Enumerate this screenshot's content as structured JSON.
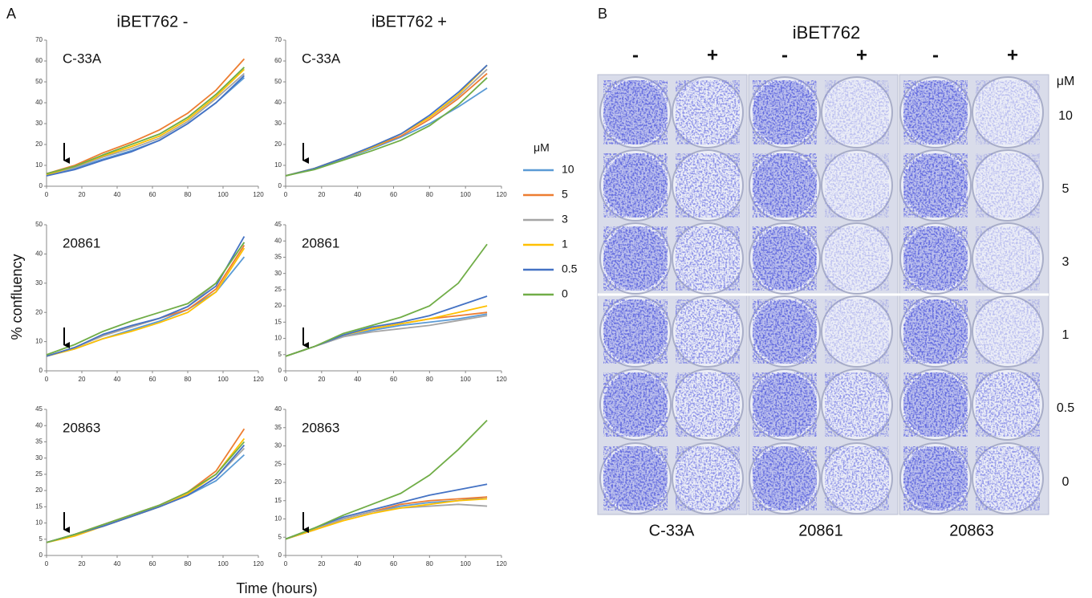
{
  "figure": {
    "panel_a": "A",
    "col_titles": [
      "iBET762 -",
      "iBET762 +"
    ],
    "ylabel": "% confluency",
    "xlabel": "Time (hours)",
    "legend_title": "μM"
  },
  "panel_b": {
    "label": "B",
    "title": "iBET762",
    "signs": [
      "-",
      "+",
      "-",
      "+",
      "-",
      "+"
    ],
    "unit": "μM",
    "rows": [
      "10",
      "5",
      "3",
      "1",
      "0.5",
      "0"
    ],
    "cells": [
      "C-33A",
      "20861",
      "20863"
    ]
  },
  "chart_data": [
    {
      "type": "line",
      "title": "C-33A",
      "x": [
        0,
        16,
        32,
        48,
        64,
        80,
        96,
        112
      ],
      "xlim": [
        0,
        120
      ],
      "xticks": [
        0,
        20,
        40,
        60,
        80,
        100,
        120
      ],
      "ylim": [
        0,
        70
      ],
      "yticks": [
        0,
        10,
        20,
        30,
        40,
        50,
        60,
        70
      ],
      "series": [
        {
          "name": "10",
          "color": "#5b9bd5",
          "values": [
            5,
            8.5,
            13,
            17,
            22,
            30,
            40,
            52
          ]
        },
        {
          "name": "5",
          "color": "#ed7d31",
          "values": [
            6,
            10,
            16,
            21,
            27,
            35,
            46,
            61
          ]
        },
        {
          "name": "3",
          "color": "#a5a5a5",
          "values": [
            5.5,
            9,
            14,
            18,
            23,
            31,
            42,
            54
          ]
        },
        {
          "name": "1",
          "color": "#ffc000",
          "values": [
            5.5,
            9.5,
            14.5,
            19,
            24,
            32,
            43,
            56
          ]
        },
        {
          "name": "0.5",
          "color": "#4472c4",
          "values": [
            5,
            8,
            12.5,
            16.5,
            22,
            30,
            40,
            53
          ]
        },
        {
          "name": "0",
          "color": "#70ad47",
          "values": [
            6,
            9.5,
            15,
            20,
            25,
            33,
            44,
            57
          ]
        }
      ]
    },
    {
      "type": "line",
      "title": "C-33A",
      "x": [
        0,
        16,
        32,
        48,
        64,
        80,
        96,
        112
      ],
      "xlim": [
        0,
        120
      ],
      "xticks": [
        0,
        20,
        40,
        60,
        80,
        100,
        120
      ],
      "ylim": [
        0,
        70
      ],
      "yticks": [
        0,
        10,
        20,
        30,
        40,
        50,
        60,
        70
      ],
      "series": [
        {
          "color": "#5b9bd5",
          "values": [
            5,
            8.5,
            13,
            18,
            23.5,
            30,
            38,
            47
          ]
        },
        {
          "color": "#ed7d31",
          "values": [
            5,
            8.5,
            13.5,
            18.5,
            24,
            32,
            42,
            54
          ]
        },
        {
          "color": "#a5a5a5",
          "values": [
            5,
            8.5,
            13.5,
            19,
            25,
            33,
            43,
            56
          ]
        },
        {
          "color": "#ffc000",
          "values": [
            5,
            8.5,
            13.5,
            18.5,
            25,
            33,
            44,
            58
          ]
        },
        {
          "color": "#4472c4",
          "values": [
            5,
            8.5,
            13.5,
            19,
            25,
            34,
            45,
            58
          ]
        },
        {
          "color": "#70ad47",
          "values": [
            5,
            8,
            12.5,
            17,
            22,
            29,
            39,
            52
          ]
        }
      ]
    },
    {
      "type": "line",
      "title": "20861",
      "x": [
        0,
        16,
        32,
        48,
        64,
        80,
        96,
        112
      ],
      "xlim": [
        0,
        120
      ],
      "xticks": [
        0,
        20,
        40,
        60,
        80,
        100,
        120
      ],
      "ylim": [
        0,
        50
      ],
      "yticks": [
        0,
        10,
        20,
        30,
        40,
        50
      ],
      "series": [
        {
          "color": "#5b9bd5",
          "values": [
            5,
            7.5,
            11,
            14,
            17,
            21,
            27,
            39
          ]
        },
        {
          "color": "#ed7d31",
          "values": [
            5,
            8,
            12,
            15,
            18,
            21,
            28,
            43
          ]
        },
        {
          "color": "#a5a5a5",
          "values": [
            5,
            8,
            12,
            15,
            18,
            22,
            30,
            44
          ]
        },
        {
          "color": "#ffc000",
          "values": [
            5,
            7.5,
            11,
            13.5,
            16.5,
            20,
            27,
            42
          ]
        },
        {
          "color": "#4472c4",
          "values": [
            5,
            8,
            12.5,
            15.5,
            18,
            22,
            29,
            46
          ]
        },
        {
          "color": "#70ad47",
          "values": [
            5.5,
            9,
            13.5,
            17,
            20,
            23,
            30,
            44
          ]
        }
      ]
    },
    {
      "type": "line",
      "title": "20861",
      "x": [
        0,
        16,
        32,
        48,
        64,
        80,
        96,
        112
      ],
      "xlim": [
        0,
        120
      ],
      "xticks": [
        0,
        20,
        40,
        60,
        80,
        100,
        120
      ],
      "ylim": [
        0,
        45
      ],
      "yticks": [
        0,
        5,
        10,
        15,
        20,
        25,
        30,
        35,
        40,
        45
      ],
      "series": [
        {
          "color": "#5b9bd5",
          "values": [
            4.5,
            7.5,
            10.5,
            12.5,
            14,
            15,
            16,
            17.5
          ]
        },
        {
          "color": "#ed7d31",
          "values": [
            4.5,
            7.5,
            11,
            13,
            14.5,
            16,
            17,
            18
          ]
        },
        {
          "color": "#a5a5a5",
          "values": [
            4.5,
            7.5,
            10.5,
            12,
            13,
            14,
            15.5,
            17
          ]
        },
        {
          "color": "#ffc000",
          "values": [
            4.5,
            7.5,
            11,
            13,
            14.5,
            16,
            18,
            20
          ]
        },
        {
          "color": "#4472c4",
          "values": [
            4.5,
            7.5,
            11,
            13.5,
            15,
            17,
            20,
            23
          ]
        },
        {
          "color": "#70ad47",
          "values": [
            4.5,
            7.5,
            11.5,
            14,
            16.5,
            20,
            27,
            39
          ]
        }
      ]
    },
    {
      "type": "line",
      "title": "20863",
      "x": [
        0,
        16,
        32,
        48,
        64,
        80,
        96,
        112
      ],
      "xlim": [
        0,
        120
      ],
      "xticks": [
        0,
        20,
        40,
        60,
        80,
        100,
        120
      ],
      "ylim": [
        0,
        45
      ],
      "yticks": [
        0,
        5,
        10,
        15,
        20,
        25,
        30,
        35,
        40,
        45
      ],
      "series": [
        {
          "color": "#5b9bd5",
          "values": [
            4,
            6.5,
            9,
            12,
            15,
            18.5,
            23,
            31
          ]
        },
        {
          "color": "#ed7d31",
          "values": [
            4,
            6.5,
            9.5,
            12.5,
            15.5,
            19.5,
            26,
            39
          ]
        },
        {
          "color": "#a5a5a5",
          "values": [
            4,
            6.5,
            9,
            12,
            15,
            18.5,
            24,
            33
          ]
        },
        {
          "color": "#ffc000",
          "values": [
            4,
            6,
            9,
            12,
            15,
            19,
            25,
            36
          ]
        },
        {
          "color": "#4472c4",
          "values": [
            4,
            6.5,
            9,
            12,
            15,
            18.5,
            24,
            34
          ]
        },
        {
          "color": "#70ad47",
          "values": [
            4,
            6.5,
            9.5,
            12.5,
            15.5,
            19.5,
            25,
            35
          ]
        }
      ]
    },
    {
      "type": "line",
      "title": "20863",
      "x": [
        0,
        16,
        32,
        48,
        64,
        80,
        96,
        112
      ],
      "xlim": [
        0,
        120
      ],
      "xticks": [
        0,
        20,
        40,
        60,
        80,
        100,
        120
      ],
      "ylim": [
        0,
        40
      ],
      "yticks": [
        0,
        5,
        10,
        15,
        20,
        25,
        30,
        35,
        40
      ],
      "series": [
        {
          "color": "#5b9bd5",
          "values": [
            4.5,
            7,
            10,
            12,
            13.5,
            14.5,
            15,
            16
          ]
        },
        {
          "color": "#ed7d31",
          "values": [
            4.5,
            7,
            10,
            12,
            14,
            15,
            15.5,
            16
          ]
        },
        {
          "color": "#a5a5a5",
          "values": [
            4.5,
            7,
            10,
            12,
            13,
            13.5,
            14,
            13.5
          ]
        },
        {
          "color": "#ffc000",
          "values": [
            4.5,
            7,
            9.5,
            11.5,
            13,
            14,
            15,
            15.5
          ]
        },
        {
          "color": "#4472c4",
          "values": [
            4.5,
            7.5,
            10.5,
            12.5,
            14.5,
            16.5,
            18,
            19.5
          ]
        },
        {
          "color": "#70ad47",
          "values": [
            4.5,
            7.5,
            11,
            14,
            17,
            22,
            29,
            37
          ]
        }
      ]
    }
  ]
}
